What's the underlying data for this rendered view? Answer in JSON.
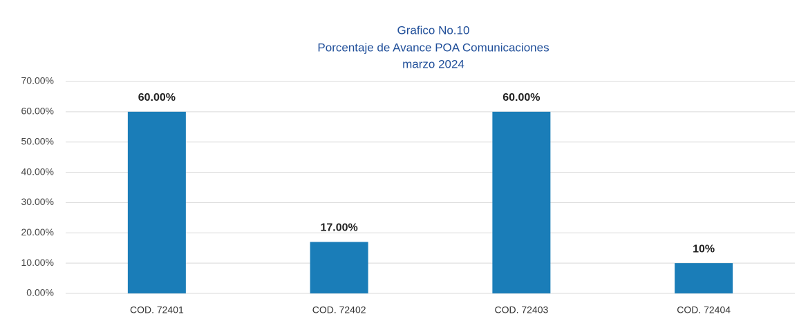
{
  "chart_data": {
    "type": "bar",
    "title": [
      "Grafico No.10",
      "Porcentaje de Avance POA Comunicaciones",
      "marzo 2024"
    ],
    "categories": [
      "COD. 72401",
      "COD. 72402",
      "COD. 72403",
      "COD. 72404"
    ],
    "values": [
      60,
      17,
      60,
      10
    ],
    "value_labels": [
      "60.00%",
      "17.00%",
      "60.00%",
      "10%"
    ],
    "color": "#1a7db8",
    "ylim": [
      0,
      70
    ],
    "yticks": [
      {
        "value": 0,
        "label": "0.00%"
      },
      {
        "value": 10,
        "label": "10.00%"
      },
      {
        "value": 20,
        "label": "20.00%"
      },
      {
        "value": 30,
        "label": "30.00%"
      },
      {
        "value": 40,
        "label": "40.00%"
      },
      {
        "value": 50,
        "label": "50.00%"
      },
      {
        "value": 60,
        "label": "60.00%"
      },
      {
        "value": 70,
        "label": "70.00%"
      }
    ],
    "grid": true
  }
}
